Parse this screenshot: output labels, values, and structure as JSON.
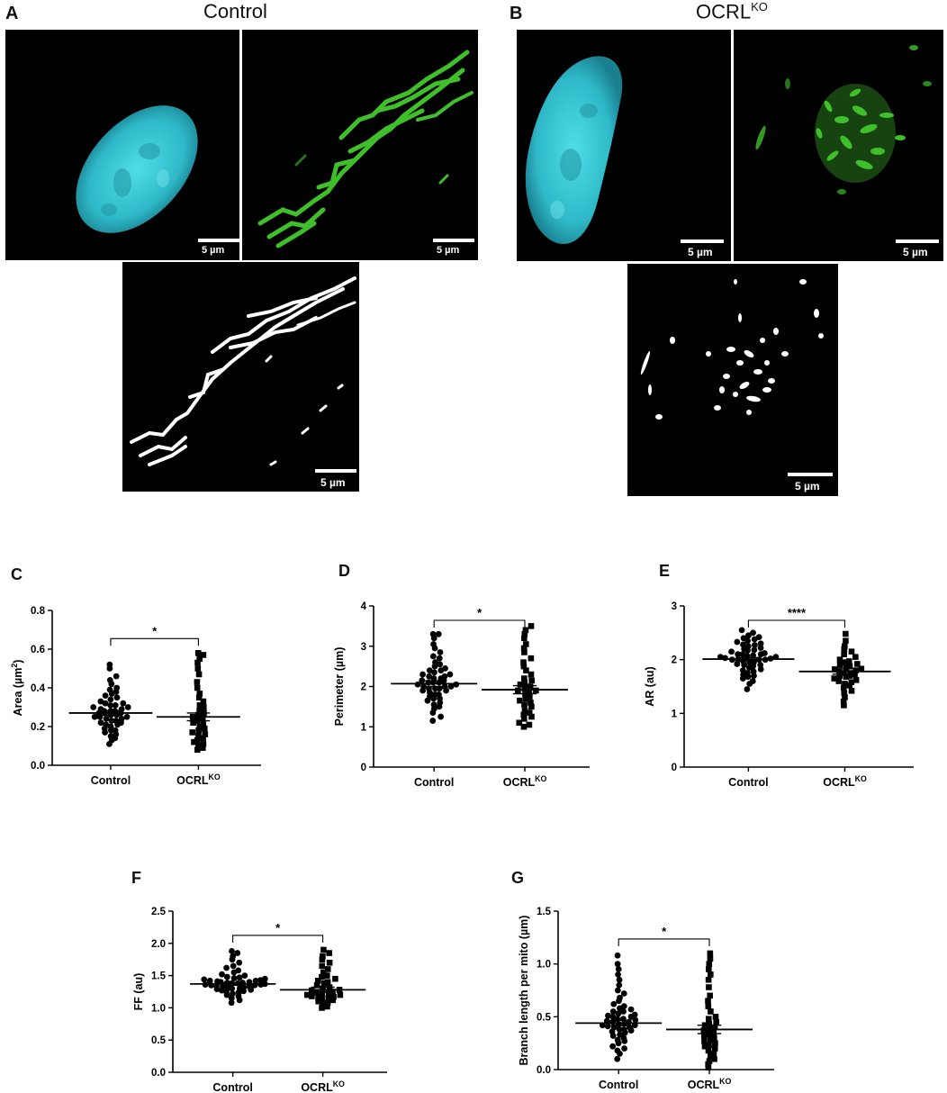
{
  "microscopy": {
    "panel_a_letter": "A",
    "panel_b_letter": "B",
    "control_title": "Control",
    "ocrl_title_base": "OCRL",
    "ocrl_title_sup": "KO",
    "scale_label": "5 µm",
    "colors": {
      "nucleus": "#3fd3e0",
      "mito": "#3fbf2a",
      "mask": "#ffffff",
      "background": "#000000"
    }
  },
  "chart_data": [
    {
      "panel": "C",
      "type": "scatter",
      "ylabel": "Area (µm²)",
      "ylabel_base": "Area (µm",
      "ylabel_sup": "2",
      "ylabel_end": ")",
      "categories": [
        "Control",
        "OCRL^KO"
      ],
      "cat_labels": [
        {
          "base": "Control",
          "sup": ""
        },
        {
          "base": "OCRL",
          "sup": "KO"
        }
      ],
      "ylim": [
        0,
        0.8
      ],
      "yticks": [
        "0.0",
        "0.2",
        "0.4",
        "0.6",
        "0.8"
      ],
      "means": [
        0.27,
        0.25
      ],
      "sem": [
        0.012,
        0.02
      ],
      "significance": "*",
      "series": [
        {
          "marker": "circle",
          "values": [
            0.11,
            0.13,
            0.14,
            0.15,
            0.16,
            0.17,
            0.18,
            0.18,
            0.19,
            0.2,
            0.21,
            0.21,
            0.22,
            0.22,
            0.23,
            0.23,
            0.24,
            0.24,
            0.25,
            0.25,
            0.25,
            0.26,
            0.26,
            0.27,
            0.27,
            0.27,
            0.28,
            0.28,
            0.28,
            0.29,
            0.29,
            0.3,
            0.3,
            0.31,
            0.31,
            0.32,
            0.32,
            0.33,
            0.34,
            0.35,
            0.36,
            0.37,
            0.38,
            0.39,
            0.4,
            0.42,
            0.44,
            0.46,
            0.5,
            0.52
          ]
        },
        {
          "marker": "square",
          "values": [
            0.08,
            0.09,
            0.1,
            0.11,
            0.12,
            0.13,
            0.14,
            0.15,
            0.16,
            0.17,
            0.18,
            0.19,
            0.2,
            0.21,
            0.22,
            0.23,
            0.24,
            0.25,
            0.26,
            0.27,
            0.28,
            0.3,
            0.31,
            0.33,
            0.35,
            0.37,
            0.4,
            0.43,
            0.47,
            0.5,
            0.53,
            0.55,
            0.57,
            0.58
          ]
        }
      ]
    },
    {
      "panel": "D",
      "type": "scatter",
      "ylabel": "Perimeter (µm)",
      "categories": [
        "Control",
        "OCRL^KO"
      ],
      "cat_labels": [
        {
          "base": "Control",
          "sup": ""
        },
        {
          "base": "OCRL",
          "sup": "KO"
        }
      ],
      "ylim": [
        0,
        4
      ],
      "yticks": [
        "0",
        "1",
        "2",
        "3",
        "4"
      ],
      "means": [
        2.07,
        1.92
      ],
      "sem": [
        0.07,
        0.1
      ],
      "significance": "*",
      "series": [
        {
          "marker": "circle",
          "values": [
            1.15,
            1.25,
            1.35,
            1.45,
            1.5,
            1.6,
            1.65,
            1.7,
            1.75,
            1.8,
            1.8,
            1.85,
            1.9,
            1.9,
            1.95,
            1.95,
            2.0,
            2.0,
            2.0,
            2.05,
            2.05,
            2.1,
            2.1,
            2.1,
            2.15,
            2.15,
            2.2,
            2.2,
            2.25,
            2.3,
            2.3,
            2.35,
            2.4,
            2.45,
            2.5,
            2.55,
            2.6,
            2.7,
            2.75,
            2.85,
            2.95,
            3.05,
            3.2,
            3.3,
            3.3,
            1.55,
            1.7,
            2.25,
            2.4,
            1.95
          ]
        },
        {
          "marker": "square",
          "values": [
            1.0,
            1.05,
            1.1,
            1.2,
            1.3,
            1.35,
            1.4,
            1.5,
            1.55,
            1.6,
            1.7,
            1.75,
            1.8,
            1.85,
            1.9,
            1.95,
            2.0,
            2.05,
            2.1,
            2.2,
            2.3,
            2.4,
            2.5,
            2.6,
            2.7,
            2.85,
            2.95,
            3.05,
            3.2,
            3.3,
            3.4,
            3.5,
            1.25,
            1.65,
            1.9,
            2.15
          ]
        }
      ]
    },
    {
      "panel": "E",
      "type": "scatter",
      "ylabel": "AR (au)",
      "categories": [
        "Control",
        "OCRL^KO"
      ],
      "cat_labels": [
        {
          "base": "Control",
          "sup": ""
        },
        {
          "base": "OCRL",
          "sup": "KO"
        }
      ],
      "ylim": [
        0,
        3
      ],
      "yticks": [
        "0",
        "1",
        "2",
        "3"
      ],
      "means": [
        2.01,
        1.78
      ],
      "sem": [
        0.03,
        0.05
      ],
      "significance": "****",
      "series": [
        {
          "marker": "circle",
          "values": [
            1.45,
            1.55,
            1.6,
            1.65,
            1.7,
            1.72,
            1.75,
            1.8,
            1.82,
            1.85,
            1.88,
            1.9,
            1.92,
            1.95,
            1.95,
            1.97,
            2.0,
            2.0,
            2.0,
            2.02,
            2.03,
            2.05,
            2.05,
            2.07,
            2.08,
            2.1,
            2.1,
            2.12,
            2.15,
            2.17,
            2.2,
            2.22,
            2.25,
            2.28,
            2.3,
            2.33,
            2.35,
            2.38,
            2.42,
            2.45,
            2.5,
            2.55,
            1.9,
            2.0,
            2.1,
            1.78,
            2.18,
            2.27,
            1.68,
            2.4
          ]
        },
        {
          "marker": "square",
          "values": [
            1.15,
            1.22,
            1.3,
            1.38,
            1.42,
            1.48,
            1.52,
            1.55,
            1.6,
            1.62,
            1.65,
            1.68,
            1.7,
            1.72,
            1.75,
            1.75,
            1.78,
            1.8,
            1.82,
            1.85,
            1.88,
            1.9,
            1.92,
            1.95,
            2.0,
            2.05,
            2.1,
            2.15,
            2.2,
            2.25,
            2.35,
            2.48,
            1.58,
            1.83,
            1.97,
            1.7
          ]
        }
      ]
    },
    {
      "panel": "F",
      "type": "scatter",
      "ylabel": "FF (au)",
      "categories": [
        "Control",
        "OCRL^KO"
      ],
      "cat_labels": [
        {
          "base": "Control",
          "sup": ""
        },
        {
          "base": "OCRL",
          "sup": "KO"
        }
      ],
      "ylim": [
        0,
        2.5
      ],
      "yticks": [
        "0.0",
        "0.5",
        "1.0",
        "1.5",
        "2.0",
        "2.5"
      ],
      "means": [
        1.37,
        1.28
      ],
      "sem": [
        0.02,
        0.04
      ],
      "significance": "*",
      "series": [
        {
          "marker": "circle",
          "values": [
            1.08,
            1.12,
            1.15,
            1.18,
            1.2,
            1.22,
            1.24,
            1.25,
            1.27,
            1.28,
            1.3,
            1.3,
            1.32,
            1.33,
            1.34,
            1.35,
            1.35,
            1.36,
            1.37,
            1.38,
            1.38,
            1.39,
            1.4,
            1.4,
            1.41,
            1.42,
            1.43,
            1.44,
            1.45,
            1.46,
            1.47,
            1.48,
            1.5,
            1.52,
            1.55,
            1.58,
            1.62,
            1.65,
            1.7,
            1.75,
            1.8,
            1.85,
            1.88,
            1.26,
            1.33,
            1.36,
            1.42,
            1.29,
            1.39,
            1.31
          ]
        },
        {
          "marker": "square",
          "values": [
            1.0,
            1.02,
            1.05,
            1.08,
            1.1,
            1.12,
            1.14,
            1.15,
            1.17,
            1.18,
            1.2,
            1.2,
            1.22,
            1.23,
            1.25,
            1.27,
            1.28,
            1.3,
            1.32,
            1.35,
            1.38,
            1.4,
            1.42,
            1.45,
            1.48,
            1.5,
            1.55,
            1.6,
            1.65,
            1.7,
            1.75,
            1.8,
            1.85,
            1.9,
            1.16,
            1.24
          ]
        }
      ]
    },
    {
      "panel": "G",
      "type": "scatter",
      "ylabel": "Branch length per mito (µm)",
      "categories": [
        "Control",
        "OCRL^KO"
      ],
      "cat_labels": [
        {
          "base": "Control",
          "sup": ""
        },
        {
          "base": "OCRL",
          "sup": "KO"
        }
      ],
      "ylim": [
        0,
        1.5
      ],
      "yticks": [
        "0.0",
        "0.5",
        "1.0",
        "1.5"
      ],
      "means": [
        0.44,
        0.38
      ],
      "sem": [
        0.025,
        0.04
      ],
      "significance": "*",
      "series": [
        {
          "marker": "circle",
          "values": [
            0.1,
            0.15,
            0.18,
            0.2,
            0.22,
            0.25,
            0.27,
            0.3,
            0.32,
            0.33,
            0.35,
            0.36,
            0.38,
            0.38,
            0.4,
            0.4,
            0.41,
            0.42,
            0.43,
            0.44,
            0.45,
            0.45,
            0.46,
            0.47,
            0.48,
            0.48,
            0.5,
            0.5,
            0.52,
            0.53,
            0.55,
            0.55,
            0.57,
            0.6,
            0.62,
            0.65,
            0.68,
            0.72,
            0.75,
            0.8,
            0.85,
            0.9,
            0.95,
            1.0,
            1.08,
            0.28,
            0.37,
            0.42,
            0.51,
            0.58
          ]
        },
        {
          "marker": "square",
          "values": [
            0.02,
            0.05,
            0.08,
            0.1,
            0.13,
            0.15,
            0.18,
            0.2,
            0.22,
            0.25,
            0.27,
            0.3,
            0.32,
            0.33,
            0.35,
            0.37,
            0.38,
            0.4,
            0.42,
            0.45,
            0.48,
            0.5,
            0.55,
            0.6,
            0.65,
            0.7,
            0.78,
            0.85,
            0.9,
            0.95,
            1.0,
            1.05,
            1.1,
            0.28,
            0.43,
            0.23
          ]
        }
      ]
    }
  ]
}
